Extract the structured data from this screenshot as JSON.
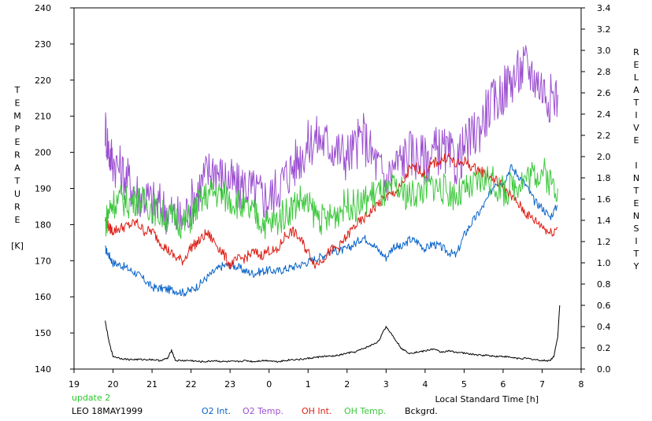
{
  "chart_data": {
    "type": "line",
    "title": "",
    "xlabel": "Local Standard Time [h]",
    "ylabel_left": [
      "T",
      "E",
      "M",
      "P",
      "E",
      "R",
      "A",
      "T",
      "U",
      "R",
      "E",
      "",
      "[K]"
    ],
    "ylabel_right": [
      "R",
      "E",
      "L",
      "A",
      "T",
      "I",
      "V",
      "E",
      "",
      "I",
      "N",
      "T",
      "E",
      "N",
      "S",
      "I",
      "T",
      "Y"
    ],
    "xlim": [
      19,
      32
    ],
    "ylim_left": [
      140,
      240
    ],
    "ylim_right": [
      0.0,
      3.4
    ],
    "x_ticks": [
      19,
      20,
      21,
      22,
      23,
      24,
      25,
      26,
      27,
      28,
      29,
      30,
      31,
      32
    ],
    "x_tick_labels": [
      "19",
      "20",
      "21",
      "22",
      "23",
      "0",
      "1",
      "2",
      "3",
      "4",
      "5",
      "6",
      "7",
      "8"
    ],
    "y_left_ticks": [
      "140",
      "150",
      "160",
      "170",
      "180",
      "190",
      "200",
      "210",
      "220",
      "230",
      "240"
    ],
    "y_right_ticks": [
      "0.0",
      "0.2",
      "0.4",
      "0.6",
      "0.8",
      "1.0",
      "1.2",
      "1.4",
      "1.6",
      "1.8",
      "2.0",
      "2.2",
      "2.4",
      "2.6",
      "2.8",
      "3.0",
      "3.2",
      "3.4"
    ],
    "grid": false,
    "series": [
      {
        "name": "O2 Int.",
        "axis": "right",
        "color": "#0a64c8",
        "x": [
          19.8,
          19.9,
          20.0,
          20.2,
          20.4,
          20.6,
          20.8,
          21.0,
          21.2,
          21.4,
          21.6,
          21.8,
          22.0,
          22.2,
          22.4,
          22.6,
          22.8,
          23.0,
          23.2,
          23.4,
          23.6,
          23.8,
          24.0,
          24.2,
          24.4,
          24.6,
          24.8,
          25.0,
          25.2,
          25.4,
          25.6,
          25.8,
          26.0,
          26.2,
          26.4,
          26.6,
          26.8,
          27.0,
          27.2,
          27.4,
          27.6,
          27.8,
          28.0,
          28.2,
          28.4,
          28.6,
          28.8,
          29.0,
          29.2,
          29.4,
          29.6,
          29.8,
          30.0,
          30.2,
          30.4,
          30.6,
          30.8,
          31.0,
          31.2,
          31.4
        ],
        "y": [
          1.13,
          1.07,
          1.0,
          0.98,
          0.94,
          0.9,
          0.84,
          0.77,
          0.76,
          0.75,
          0.74,
          0.72,
          0.74,
          0.79,
          0.86,
          0.92,
          0.97,
          0.98,
          0.96,
          0.92,
          0.9,
          0.92,
          0.93,
          0.92,
          0.94,
          0.96,
          0.98,
          1.01,
          1.04,
          1.07,
          1.12,
          1.11,
          1.13,
          1.18,
          1.24,
          1.2,
          1.12,
          1.05,
          1.16,
          1.14,
          1.22,
          1.2,
          1.13,
          1.18,
          1.15,
          1.1,
          1.07,
          1.26,
          1.38,
          1.48,
          1.6,
          1.76,
          1.75,
          1.9,
          1.82,
          1.72,
          1.58,
          1.52,
          1.43,
          1.54
        ]
      },
      {
        "name": "O2 Temp.",
        "axis": "left",
        "color": "#9b4fd0",
        "x": [
          19.8,
          19.9,
          20.0,
          20.2,
          20.4,
          20.6,
          20.8,
          21.0,
          21.2,
          21.4,
          21.6,
          21.8,
          22.0,
          22.2,
          22.4,
          22.6,
          22.8,
          23.0,
          23.2,
          23.4,
          23.6,
          23.8,
          24.0,
          24.2,
          24.4,
          24.6,
          24.8,
          25.0,
          25.2,
          25.4,
          25.6,
          25.8,
          26.0,
          26.2,
          26.4,
          26.6,
          26.8,
          27.0,
          27.2,
          27.4,
          27.6,
          27.8,
          28.0,
          28.2,
          28.4,
          28.6,
          28.8,
          29.0,
          29.2,
          29.4,
          29.6,
          29.8,
          30.0,
          30.2,
          30.4,
          30.6,
          30.8,
          31.0,
          31.2,
          31.4
        ],
        "y": [
          207,
          200,
          198,
          195,
          192,
          189,
          188,
          186,
          185,
          184,
          182,
          181,
          186,
          190,
          194,
          196,
          193,
          192,
          190,
          191,
          189,
          188,
          187,
          190,
          193,
          196,
          199,
          202,
          204,
          203,
          202,
          200,
          199,
          201,
          205,
          200,
          196,
          192,
          196,
          198,
          200,
          199,
          198,
          200,
          201,
          199,
          197,
          201,
          204,
          207,
          212,
          214,
          217,
          220,
          222,
          224,
          221,
          218,
          215,
          216
        ]
      },
      {
        "name": "OH Int.",
        "axis": "right",
        "color": "#dc1e14",
        "x": [
          19.8,
          19.9,
          20.0,
          20.2,
          20.4,
          20.6,
          20.8,
          21.0,
          21.2,
          21.4,
          21.6,
          21.8,
          22.0,
          22.2,
          22.4,
          22.6,
          22.8,
          23.0,
          23.2,
          23.4,
          23.6,
          23.8,
          24.0,
          24.2,
          24.4,
          24.6,
          24.8,
          25.0,
          25.2,
          25.4,
          25.6,
          25.8,
          26.0,
          26.2,
          26.4,
          26.6,
          26.8,
          27.0,
          27.2,
          27.4,
          27.6,
          27.8,
          28.0,
          28.2,
          28.4,
          28.6,
          28.8,
          29.0,
          29.2,
          29.4,
          29.6,
          29.8,
          30.0,
          30.2,
          30.4,
          30.6,
          30.8,
          31.0,
          31.2,
          31.4
        ],
        "y": [
          1.41,
          1.33,
          1.3,
          1.33,
          1.35,
          1.38,
          1.3,
          1.3,
          1.2,
          1.12,
          1.05,
          1.02,
          1.15,
          1.2,
          1.28,
          1.2,
          1.1,
          0.98,
          1.03,
          1.05,
          1.1,
          1.07,
          1.12,
          1.1,
          1.25,
          1.3,
          1.22,
          1.1,
          0.98,
          1.05,
          1.12,
          1.15,
          1.25,
          1.35,
          1.4,
          1.48,
          1.56,
          1.62,
          1.66,
          1.72,
          1.88,
          1.9,
          1.82,
          1.94,
          1.96,
          2.0,
          1.92,
          1.96,
          1.9,
          1.87,
          1.82,
          1.78,
          1.72,
          1.63,
          1.55,
          1.46,
          1.4,
          1.35,
          1.28,
          1.33
        ]
      },
      {
        "name": "OH Temp.",
        "axis": "left",
        "color": "#3cc83c",
        "x": [
          19.8,
          19.9,
          20.0,
          20.2,
          20.4,
          20.6,
          20.8,
          21.0,
          21.2,
          21.4,
          21.6,
          21.8,
          22.0,
          22.2,
          22.4,
          22.6,
          22.8,
          23.0,
          23.2,
          23.4,
          23.6,
          23.8,
          24.0,
          24.2,
          24.4,
          24.6,
          24.8,
          25.0,
          25.2,
          25.4,
          25.6,
          25.8,
          26.0,
          26.2,
          26.4,
          26.6,
          26.8,
          27.0,
          27.2,
          27.4,
          27.6,
          27.8,
          28.0,
          28.2,
          28.4,
          28.6,
          28.8,
          29.0,
          29.2,
          29.4,
          29.6,
          29.8,
          30.0,
          30.2,
          30.4,
          30.6,
          30.8,
          31.0,
          31.2,
          31.4
        ],
        "y": [
          180,
          184,
          186,
          187,
          186,
          187,
          186,
          185,
          183,
          182,
          182,
          180,
          182,
          186,
          188,
          189,
          188,
          187,
          186,
          184,
          183,
          181,
          180,
          181,
          183,
          185,
          187,
          185,
          183,
          181,
          182,
          184,
          186,
          185,
          186,
          188,
          189,
          188,
          190,
          189,
          188,
          189,
          190,
          191,
          190,
          189,
          188,
          189,
          190,
          192,
          193,
          191,
          189,
          190,
          192,
          193,
          194,
          195,
          192,
          190
        ]
      },
      {
        "name": "Bckgrd.",
        "axis": "right",
        "color": "#000000",
        "x": [
          19.8,
          19.9,
          20.0,
          20.2,
          20.4,
          20.6,
          20.8,
          21.0,
          21.2,
          21.4,
          21.5,
          21.6,
          21.8,
          22.0,
          22.2,
          22.4,
          22.6,
          22.8,
          23.0,
          23.2,
          23.4,
          23.6,
          23.8,
          24.0,
          24.2,
          24.4,
          24.6,
          24.8,
          25.0,
          25.2,
          25.4,
          25.6,
          25.8,
          26.0,
          26.2,
          26.4,
          26.6,
          26.8,
          27.0,
          27.2,
          27.4,
          27.6,
          27.8,
          28.0,
          28.2,
          28.4,
          28.6,
          28.8,
          29.0,
          29.2,
          29.4,
          29.6,
          29.8,
          30.0,
          30.2,
          30.4,
          30.6,
          30.8,
          31.0,
          31.2,
          31.3,
          31.4,
          31.45
        ],
        "y": [
          0.45,
          0.25,
          0.12,
          0.1,
          0.09,
          0.09,
          0.09,
          0.09,
          0.08,
          0.1,
          0.18,
          0.08,
          0.08,
          0.08,
          0.07,
          0.07,
          0.08,
          0.07,
          0.07,
          0.07,
          0.08,
          0.07,
          0.08,
          0.08,
          0.07,
          0.08,
          0.09,
          0.09,
          0.1,
          0.11,
          0.12,
          0.12,
          0.13,
          0.15,
          0.16,
          0.19,
          0.22,
          0.26,
          0.4,
          0.3,
          0.19,
          0.15,
          0.16,
          0.17,
          0.19,
          0.16,
          0.17,
          0.16,
          0.15,
          0.14,
          0.13,
          0.13,
          0.12,
          0.12,
          0.11,
          0.1,
          0.1,
          0.09,
          0.08,
          0.08,
          0.12,
          0.3,
          0.6
        ]
      }
    ],
    "legend": {
      "placement": "bottom",
      "items": [
        {
          "label": "O2 Int.",
          "color": "#0a64c8"
        },
        {
          "label": "O2 Temp.",
          "color": "#9b4fd0"
        },
        {
          "label": "OH Int.",
          "color": "#dc1e14"
        },
        {
          "label": "OH Temp.",
          "color": "#3cc83c"
        },
        {
          "label": "Bckgrd.",
          "color": "#000000"
        }
      ]
    },
    "annotations": {
      "update": "update 2",
      "update_color": "#2ec82e",
      "station": "LEO 18MAY1999"
    }
  }
}
